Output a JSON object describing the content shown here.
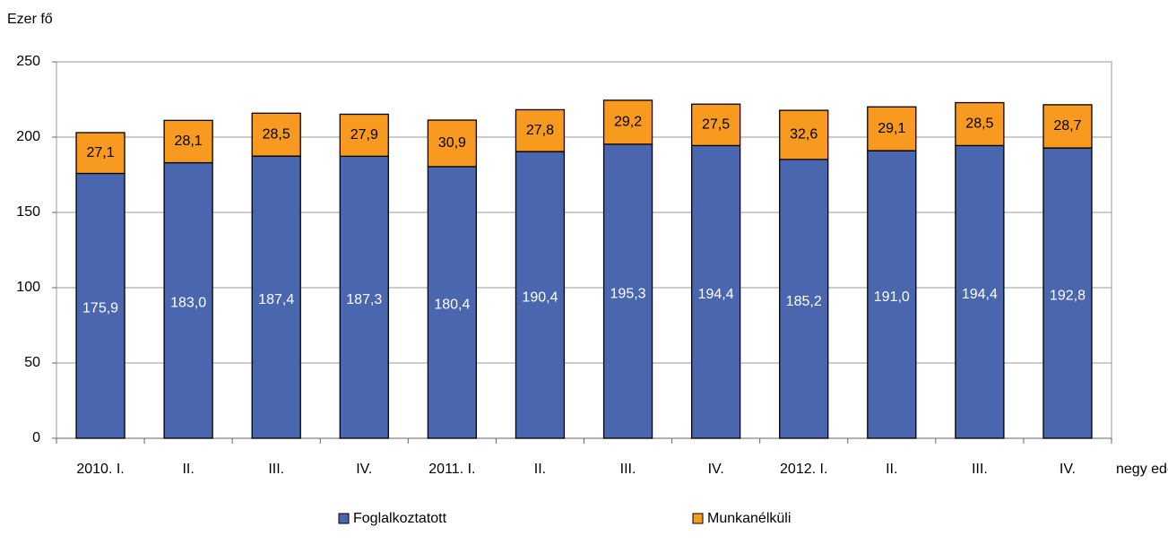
{
  "chart_data": {
    "type": "stacked_bar",
    "y_label": "Ezer fő",
    "x_label": "negy edév",
    "categories": [
      "2010. I.",
      "II.",
      "III.",
      "IV.",
      "2011. I.",
      "II.",
      "III.",
      "IV.",
      "2012. I.",
      "II.",
      "III.",
      "IV."
    ],
    "series": [
      {
        "name": "Foglalkoztatott",
        "color": "#4a66ae",
        "values": [
          175.9,
          183.0,
          187.4,
          187.3,
          180.4,
          190.4,
          195.3,
          194.4,
          185.2,
          191.0,
          194.4,
          192.8
        ],
        "value_labels": [
          "175,9",
          "183,0",
          "187,4",
          "187,3",
          "180,4",
          "190,4",
          "195,3",
          "194,4",
          "185,2",
          "191,0",
          "194,4",
          "192,8"
        ]
      },
      {
        "name": "Munkanélküli",
        "color": "#f79a1f",
        "values": [
          27.1,
          28.1,
          28.5,
          27.9,
          30.9,
          27.8,
          29.2,
          27.5,
          32.6,
          29.1,
          28.5,
          28.7
        ],
        "value_labels": [
          "27,1",
          "28,1",
          "28,5",
          "27,9",
          "30,9",
          "27,8",
          "29,2",
          "27,5",
          "32,6",
          "29,1",
          "28,5",
          "28,7"
        ]
      }
    ],
    "ylim": [
      0,
      250
    ],
    "yticks": [
      0,
      50,
      100,
      150,
      200,
      250
    ],
    "grid": true
  }
}
